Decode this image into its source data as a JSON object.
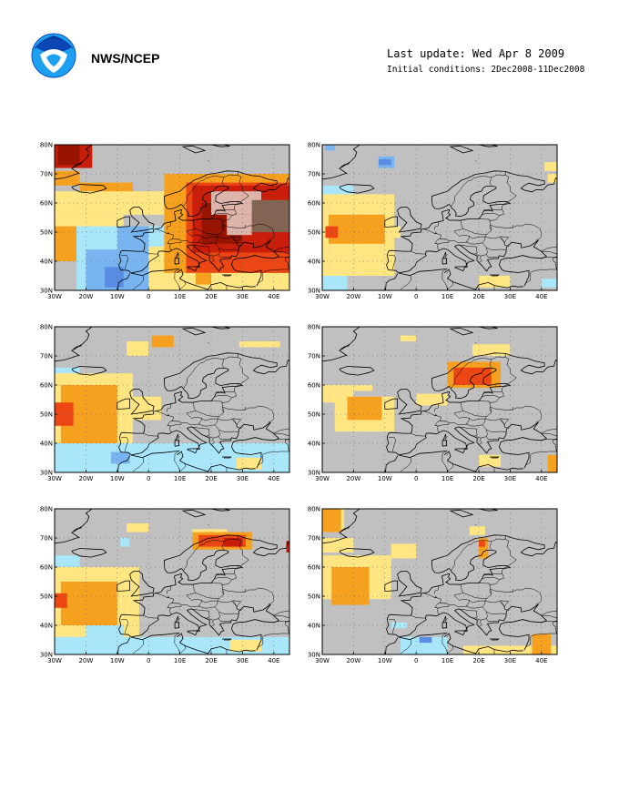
{
  "header": {
    "org": "NWS/NCEP",
    "last_update": "Last update: Wed Apr 8 2009",
    "initial_conditions": "Initial conditions: 2Dec2008-11Dec2008"
  },
  "axes": {
    "lat_labels": [
      "30N",
      "40N",
      "50N",
      "60N",
      "70N",
      "80N"
    ],
    "lon_labels": [
      "30W",
      "20W",
      "10W",
      "0",
      "10E",
      "20E",
      "30E",
      "40E"
    ]
  },
  "colors": {
    "background": "#c0c0c0",
    "light_blue": "#aae6fa",
    "medium_blue": "#78b4f0",
    "blue": "#5a8ce6",
    "yellow": "#ffe682",
    "orange": "#f5a01e",
    "red_orange": "#eb4614",
    "red": "#c81e0a",
    "dark_red": "#961400",
    "pink": "#dcb4aa",
    "brown": "#826452"
  },
  "panels": [
    {
      "id": 1,
      "anomalies": [
        {
          "c": "red",
          "lon": [
            -30,
            -18
          ],
          "lat": [
            72,
            80
          ]
        },
        {
          "c": "dark_red",
          "lon": [
            -29,
            -22
          ],
          "lat": [
            73,
            80
          ]
        },
        {
          "c": "orange",
          "lon": [
            -30,
            -22
          ],
          "lat": [
            66,
            71
          ]
        },
        {
          "c": "orange",
          "lon": [
            -22,
            -5
          ],
          "lat": [
            63,
            67
          ]
        },
        {
          "c": "yellow",
          "lon": [
            -30,
            8
          ],
          "lat": [
            56,
            64
          ]
        },
        {
          "c": "yellow",
          "lon": [
            -30,
            -8
          ],
          "lat": [
            42,
            56
          ]
        },
        {
          "c": "orange",
          "lon": [
            -30,
            -23
          ],
          "lat": [
            40,
            52
          ]
        },
        {
          "c": "light_blue",
          "lon": [
            -23,
            10
          ],
          "lat": [
            30,
            52
          ]
        },
        {
          "c": "medium_blue",
          "lon": [
            -20,
            8
          ],
          "lat": [
            30,
            44
          ]
        },
        {
          "c": "medium_blue",
          "lon": [
            -10,
            0
          ],
          "lat": [
            44,
            52
          ]
        },
        {
          "c": "blue",
          "lon": [
            -14,
            -8
          ],
          "lat": [
            31,
            38
          ]
        },
        {
          "c": "yellow",
          "lon": [
            0,
            45
          ],
          "lat": [
            30,
            45
          ]
        },
        {
          "c": "orange",
          "lon": [
            5,
            45
          ],
          "lat": [
            36,
            70
          ]
        },
        {
          "c": "red_orange",
          "lon": [
            12,
            45
          ],
          "lat": [
            36,
            67
          ]
        },
        {
          "c": "red",
          "lon": [
            14,
            45
          ],
          "lat": [
            43,
            66
          ]
        },
        {
          "c": "dark_red",
          "lon": [
            17,
            30
          ],
          "lat": [
            46,
            60
          ]
        },
        {
          "c": "pink",
          "lon": [
            20,
            36
          ],
          "lat": [
            56,
            64
          ]
        },
        {
          "c": "pink",
          "lon": [
            25,
            33
          ],
          "lat": [
            49,
            56
          ]
        },
        {
          "c": "brown",
          "lon": [
            33,
            45
          ],
          "lat": [
            50,
            61
          ]
        },
        {
          "c": "orange",
          "lon": [
            15,
            20
          ],
          "lat": [
            32,
            36
          ]
        }
      ]
    },
    {
      "id": 2,
      "anomalies": [
        {
          "c": "medium_blue",
          "lon": [
            -29,
            -26
          ],
          "lat": [
            78,
            80
          ]
        },
        {
          "c": "medium_blue",
          "lon": [
            -12,
            -7
          ],
          "lat": [
            72,
            76
          ]
        },
        {
          "c": "blue",
          "lon": [
            -12,
            -8
          ],
          "lat": [
            73,
            75
          ]
        },
        {
          "c": "yellow",
          "lon": [
            41,
            45
          ],
          "lat": [
            71,
            74
          ]
        },
        {
          "c": "yellow",
          "lon": [
            42,
            45
          ],
          "lat": [
            67,
            70
          ]
        },
        {
          "c": "light_blue",
          "lon": [
            -30,
            -20
          ],
          "lat": [
            60,
            66
          ]
        },
        {
          "c": "light_blue",
          "lon": [
            -30,
            -22
          ],
          "lat": [
            30,
            35
          ]
        },
        {
          "c": "yellow",
          "lon": [
            -30,
            -7
          ],
          "lat": [
            35,
            63
          ]
        },
        {
          "c": "orange",
          "lon": [
            -28,
            -10
          ],
          "lat": [
            46,
            56
          ]
        },
        {
          "c": "red_orange",
          "lon": [
            -29,
            -25
          ],
          "lat": [
            48,
            52
          ]
        },
        {
          "c": "yellow",
          "lon": [
            -10,
            -5
          ],
          "lat": [
            48,
            52
          ]
        },
        {
          "c": "yellow",
          "lon": [
            20,
            30
          ],
          "lat": [
            31,
            35
          ]
        },
        {
          "c": "light_blue",
          "lon": [
            40,
            45
          ],
          "lat": [
            31,
            34
          ]
        }
      ]
    },
    {
      "id": 3,
      "anomalies": [
        {
          "c": "yellow",
          "lon": [
            -7,
            0
          ],
          "lat": [
            70,
            75
          ]
        },
        {
          "c": "orange",
          "lon": [
            1,
            8
          ],
          "lat": [
            73,
            77
          ]
        },
        {
          "c": "yellow",
          "lon": [
            29,
            42
          ],
          "lat": [
            73,
            75
          ]
        },
        {
          "c": "light_blue",
          "lon": [
            -30,
            -22
          ],
          "lat": [
            62,
            66
          ]
        },
        {
          "c": "yellow",
          "lon": [
            -30,
            -5
          ],
          "lat": [
            35,
            64
          ]
        },
        {
          "c": "orange",
          "lon": [
            -28,
            -10
          ],
          "lat": [
            40,
            60
          ]
        },
        {
          "c": "red_orange",
          "lon": [
            -30,
            -24
          ],
          "lat": [
            46,
            54
          ]
        },
        {
          "c": "yellow",
          "lon": [
            -6,
            4
          ],
          "lat": [
            48,
            56
          ]
        },
        {
          "c": "light_blue",
          "lon": [
            -30,
            45
          ],
          "lat": [
            30,
            40
          ]
        },
        {
          "c": "medium_blue",
          "lon": [
            -12,
            -6
          ],
          "lat": [
            33,
            37
          ]
        },
        {
          "c": "yellow",
          "lon": [
            28,
            36
          ],
          "lat": [
            31,
            35
          ]
        }
      ]
    },
    {
      "id": 4,
      "anomalies": [
        {
          "c": "yellow",
          "lon": [
            -5,
            0
          ],
          "lat": [
            75,
            77
          ]
        },
        {
          "c": "yellow",
          "lon": [
            18,
            30
          ],
          "lat": [
            70,
            74
          ]
        },
        {
          "c": "orange",
          "lon": [
            10,
            27
          ],
          "lat": [
            59,
            68
          ]
        },
        {
          "c": "red_orange",
          "lon": [
            12,
            24
          ],
          "lat": [
            60,
            66
          ]
        },
        {
          "c": "yellow",
          "lon": [
            -30,
            -14
          ],
          "lat": [
            58,
            60
          ]
        },
        {
          "c": "yellow",
          "lon": [
            -30,
            -20
          ],
          "lat": [
            54,
            58
          ]
        },
        {
          "c": "yellow",
          "lon": [
            -26,
            -7
          ],
          "lat": [
            44,
            56
          ]
        },
        {
          "c": "orange",
          "lon": [
            -22,
            -11
          ],
          "lat": [
            48,
            56
          ]
        },
        {
          "c": "yellow",
          "lon": [
            0,
            10
          ],
          "lat": [
            53,
            57
          ]
        },
        {
          "c": "yellow",
          "lon": [
            20,
            27
          ],
          "lat": [
            32,
            36
          ]
        },
        {
          "c": "orange",
          "lon": [
            42,
            45
          ],
          "lat": [
            30,
            36
          ]
        }
      ]
    },
    {
      "id": 5,
      "anomalies": [
        {
          "c": "yellow",
          "lon": [
            -7,
            0
          ],
          "lat": [
            72,
            75
          ]
        },
        {
          "c": "light_blue",
          "lon": [
            -9,
            -6
          ],
          "lat": [
            67,
            70
          ]
        },
        {
          "c": "yellow",
          "lon": [
            14,
            25
          ],
          "lat": [
            69,
            73
          ]
        },
        {
          "c": "orange",
          "lon": [
            14,
            33
          ],
          "lat": [
            66,
            72
          ]
        },
        {
          "c": "red_orange",
          "lon": [
            16,
            31
          ],
          "lat": [
            67,
            71
          ]
        },
        {
          "c": "red",
          "lon": [
            24,
            30
          ],
          "lat": [
            67,
            70
          ]
        },
        {
          "c": "red",
          "lon": [
            44,
            45
          ],
          "lat": [
            65,
            69
          ]
        },
        {
          "c": "light_blue",
          "lon": [
            -30,
            -22
          ],
          "lat": [
            58,
            64
          ]
        },
        {
          "c": "yellow",
          "lon": [
            -30,
            -3
          ],
          "lat": [
            36,
            60
          ]
        },
        {
          "c": "orange",
          "lon": [
            -28,
            -10
          ],
          "lat": [
            40,
            55
          ]
        },
        {
          "c": "red_orange",
          "lon": [
            -30,
            -26
          ],
          "lat": [
            46,
            51
          ]
        },
        {
          "c": "light_blue",
          "lon": [
            -30,
            45
          ],
          "lat": [
            30,
            36
          ]
        },
        {
          "c": "light_blue",
          "lon": [
            -20,
            -8
          ],
          "lat": [
            36,
            40
          ]
        },
        {
          "c": "yellow",
          "lon": [
            26,
            36
          ],
          "lat": [
            31,
            35
          ]
        }
      ]
    },
    {
      "id": 6,
      "anomalies": [
        {
          "c": "yellow",
          "lon": [
            -30,
            -23
          ],
          "lat": [
            72,
            80
          ]
        },
        {
          "c": "orange",
          "lon": [
            -30,
            -24
          ],
          "lat": [
            72,
            80
          ]
        },
        {
          "c": "yellow",
          "lon": [
            -30,
            -20
          ],
          "lat": [
            65,
            70
          ]
        },
        {
          "c": "yellow",
          "lon": [
            -8,
            0
          ],
          "lat": [
            63,
            68
          ]
        },
        {
          "c": "yellow",
          "lon": [
            17,
            22
          ],
          "lat": [
            71,
            74
          ]
        },
        {
          "c": "orange",
          "lon": [
            20,
            23
          ],
          "lat": [
            63,
            70
          ]
        },
        {
          "c": "red_orange",
          "lon": [
            20,
            22
          ],
          "lat": [
            67,
            69
          ]
        },
        {
          "c": "yellow",
          "lon": [
            -30,
            -8
          ],
          "lat": [
            49,
            64
          ]
        },
        {
          "c": "orange",
          "lon": [
            -27,
            -15
          ],
          "lat": [
            47,
            60
          ]
        },
        {
          "c": "light_blue",
          "lon": [
            -5,
            10
          ],
          "lat": [
            30,
            36
          ]
        },
        {
          "c": "blue",
          "lon": [
            1,
            5
          ],
          "lat": [
            34,
            36
          ]
        },
        {
          "c": "light_blue",
          "lon": [
            -8,
            -3
          ],
          "lat": [
            39,
            41
          ]
        },
        {
          "c": "yellow",
          "lon": [
            15,
            45
          ],
          "lat": [
            30,
            33
          ]
        },
        {
          "c": "orange",
          "lon": [
            37,
            43
          ],
          "lat": [
            30,
            37
          ]
        }
      ]
    }
  ]
}
